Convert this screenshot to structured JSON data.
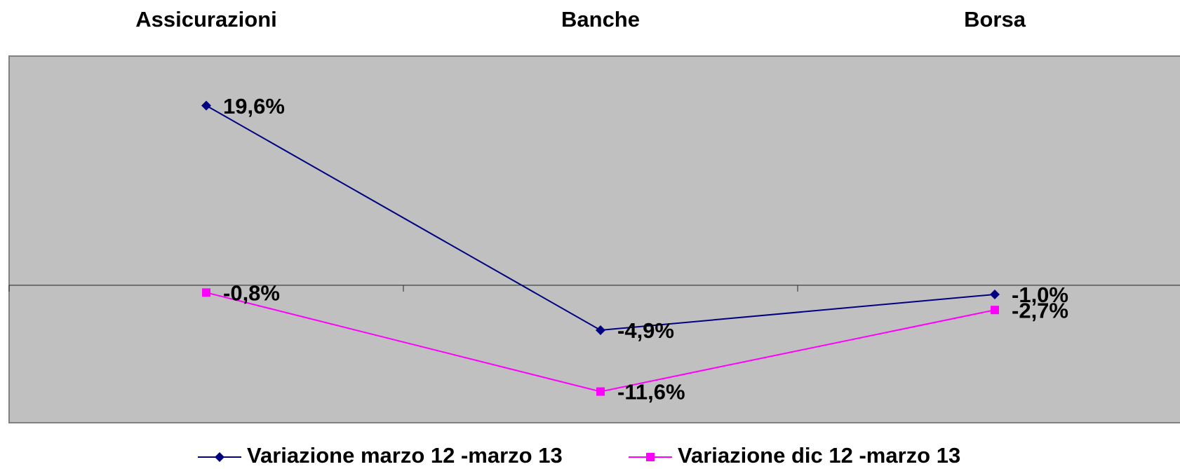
{
  "chart_data": {
    "type": "line",
    "categories": [
      "Assicurazioni",
      "Banche",
      "Borsa"
    ],
    "series": [
      {
        "name": "Variazione marzo 12 -marzo 13",
        "color": "#000080",
        "marker": "diamond",
        "values": [
          19.6,
          -4.9,
          -1.0
        ],
        "value_labels": [
          "19,6%",
          "-4,9%",
          "-1,0%"
        ]
      },
      {
        "name": "Variazione dic 12 -marzo 13",
        "color": "#ff00ff",
        "marker": "square",
        "values": [
          -0.8,
          -11.6,
          -2.7
        ],
        "value_labels": [
          "-0,8%",
          "-11,6%",
          "-2,7%"
        ]
      }
    ],
    "ylim": [
      -15,
      25
    ],
    "plot_background": "#c0c0c0",
    "legend": "bottom"
  }
}
